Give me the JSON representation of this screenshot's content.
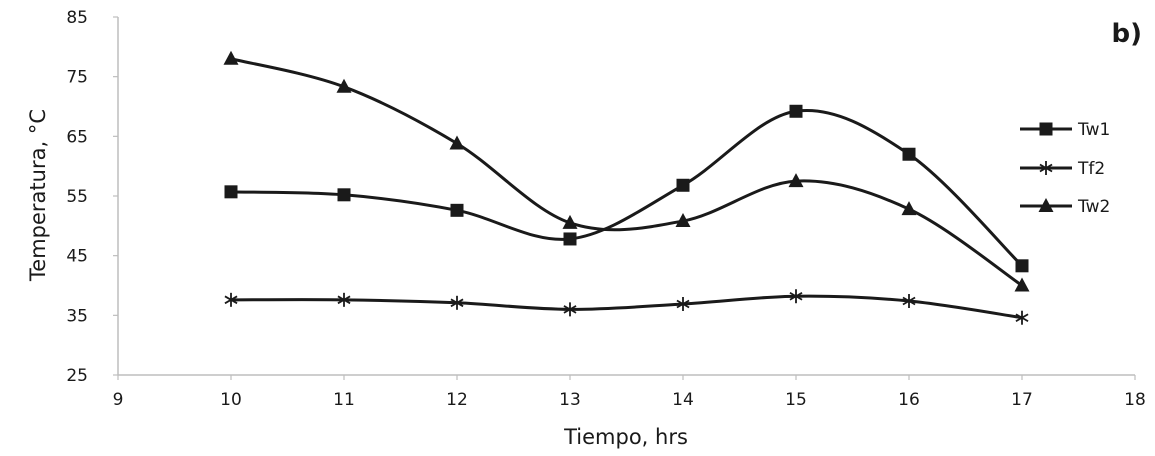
{
  "chart_data": {
    "type": "line",
    "panel_label": "b)",
    "xlabel": "Tiempo, hrs",
    "ylabel": "Temperatura, °C",
    "xlim": [
      9,
      18
    ],
    "ylim": [
      25,
      85
    ],
    "xticks": [
      9,
      10,
      11,
      12,
      13,
      14,
      15,
      16,
      17,
      18
    ],
    "yticks": [
      25,
      35,
      45,
      55,
      65,
      75,
      85
    ],
    "x": [
      10,
      11,
      12,
      13,
      14,
      15,
      16,
      17
    ],
    "grid": false,
    "smooth": true,
    "legend": "right",
    "series": [
      {
        "name": "Tw1",
        "marker": "square",
        "color": "#1a1a1a",
        "values": [
          55.7,
          55.2,
          52.6,
          47.8,
          56.8,
          69.2,
          62.0,
          43.3
        ]
      },
      {
        "name": "Tf2",
        "marker": "asterisk",
        "color": "#1a1a1a",
        "values": [
          37.6,
          37.6,
          37.1,
          36.0,
          36.9,
          38.2,
          37.4,
          34.6
        ]
      },
      {
        "name": "Tw2",
        "marker": "triangle",
        "color": "#1a1a1a",
        "values": [
          78.0,
          73.3,
          63.8,
          50.5,
          50.8,
          57.5,
          52.8,
          40.0
        ]
      }
    ]
  }
}
